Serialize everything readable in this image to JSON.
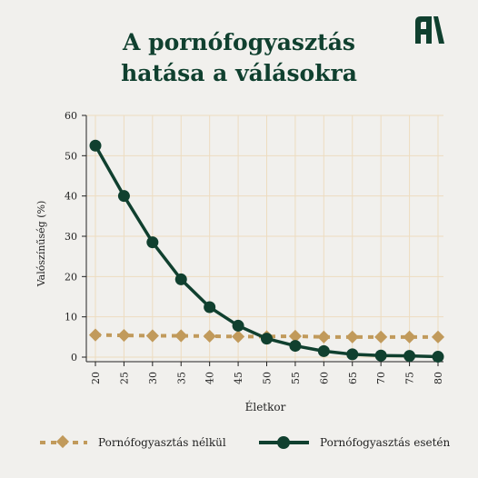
{
  "title": {
    "line1": "A pornófogyasztás",
    "line2": "hatása a válásokra"
  },
  "logo": {
    "icon": "brand-logo-icon",
    "color": "#10402f"
  },
  "colors": {
    "background": "#f1f0ed",
    "grid": "#eddcc0",
    "series_with": "#10402f",
    "series_without": "#c19a5b"
  },
  "chart_data": {
    "type": "line",
    "title": "A pornófogyasztás hatása a válásokra",
    "xlabel": "Életkor",
    "ylabel": "Valószínűség (%)",
    "xlim": [
      20,
      80
    ],
    "ylim": [
      0,
      60
    ],
    "x_ticks": [
      20,
      25,
      30,
      35,
      40,
      45,
      50,
      55,
      60,
      65,
      70,
      75,
      80
    ],
    "y_ticks": [
      0,
      10,
      20,
      30,
      40,
      50,
      60
    ],
    "grid": true,
    "legend_position": "bottom",
    "series": [
      {
        "name": "Pornófogyasztás nélkül",
        "style": "dashed",
        "marker": "diamond",
        "x": [
          20,
          25,
          30,
          35,
          40,
          45,
          50,
          55,
          60,
          65,
          70,
          75,
          80
        ],
        "y": [
          5.5,
          5.4,
          5.3,
          5.3,
          5.2,
          5.1,
          5.1,
          5.2,
          5.0,
          5.0,
          5.0,
          5.0,
          5.0
        ]
      },
      {
        "name": "Pornófogyasztás esetén",
        "style": "solid",
        "marker": "circle",
        "x": [
          20,
          25,
          30,
          35,
          40,
          45,
          50,
          55,
          60,
          65,
          70,
          75,
          80
        ],
        "y": [
          52.5,
          40.0,
          28.5,
          19.3,
          12.4,
          7.8,
          4.6,
          2.8,
          1.5,
          0.7,
          0.4,
          0.3,
          0.1
        ]
      }
    ]
  }
}
